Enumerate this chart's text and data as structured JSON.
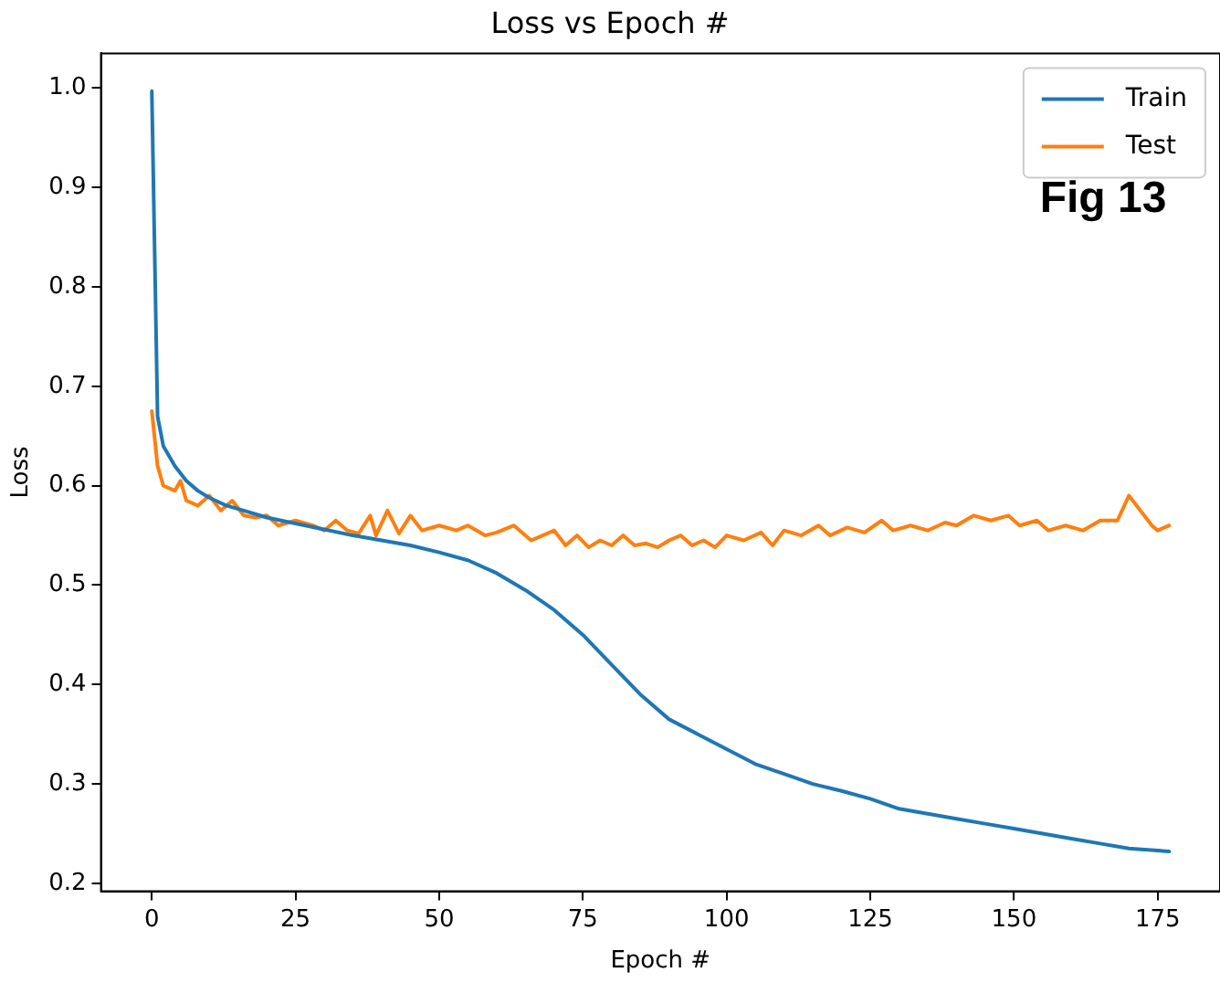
{
  "chart_data": {
    "type": "line",
    "title": "Loss vs Epoch #",
    "xlabel": "Epoch #",
    "ylabel": "Loss",
    "annotations": [
      "Fig 13"
    ],
    "legend": "top right",
    "grid": false,
    "xlim": [
      -8.85,
      185.85
    ],
    "xticks": [
      0,
      25,
      50,
      75,
      100,
      125,
      150,
      175
    ],
    "ylim": [
      0.192,
      1.035
    ],
    "yticks": [
      0.2,
      0.3,
      0.4,
      0.5,
      0.6,
      0.7,
      0.8,
      0.9,
      {
        "value": 1,
        "label": "1.0"
      }
    ],
    "series": [
      {
        "name": "Train",
        "color": "#1f77b4",
        "x": [
          0,
          1,
          2,
          4,
          6,
          8,
          10,
          13,
          16,
          20,
          25,
          30,
          35,
          40,
          45,
          50,
          55,
          60,
          65,
          70,
          75,
          80,
          85,
          90,
          95,
          100,
          105,
          110,
          115,
          120,
          125,
          130,
          135,
          140,
          145,
          150,
          155,
          160,
          165,
          170,
          175,
          177
        ],
        "values": [
          0.997,
          0.67,
          0.64,
          0.62,
          0.605,
          0.595,
          0.588,
          0.58,
          0.575,
          0.568,
          0.562,
          0.556,
          0.55,
          0.545,
          0.54,
          0.533,
          0.525,
          0.512,
          0.495,
          0.475,
          0.45,
          0.42,
          0.39,
          0.365,
          0.35,
          0.335,
          0.32,
          0.31,
          0.3,
          0.293,
          0.285,
          0.275,
          0.27,
          0.265,
          0.26,
          0.255,
          0.25,
          0.245,
          0.24,
          0.235,
          0.233,
          0.232
        ]
      },
      {
        "name": "Test",
        "color": "#ff7f0e",
        "x": [
          0,
          1,
          2,
          4,
          5,
          6,
          8,
          10,
          12,
          14,
          16,
          18,
          20,
          22,
          25,
          28,
          30,
          32,
          34,
          36,
          38,
          39,
          41,
          43,
          45,
          47,
          50,
          53,
          55,
          58,
          60,
          63,
          66,
          68,
          70,
          72,
          74,
          76,
          78,
          80,
          82,
          84,
          86,
          88,
          90,
          92,
          94,
          96,
          98,
          100,
          103,
          106,
          108,
          110,
          113,
          116,
          118,
          121,
          124,
          127,
          129,
          132,
          135,
          138,
          140,
          143,
          146,
          149,
          151,
          154,
          156,
          159,
          162,
          165,
          168,
          170,
          172,
          174,
          175,
          177
        ],
        "values": [
          0.675,
          0.62,
          0.6,
          0.595,
          0.605,
          0.585,
          0.58,
          0.59,
          0.575,
          0.585,
          0.57,
          0.568,
          0.57,
          0.56,
          0.565,
          0.56,
          0.555,
          0.565,
          0.555,
          0.552,
          0.57,
          0.55,
          0.575,
          0.552,
          0.57,
          0.555,
          0.56,
          0.555,
          0.56,
          0.55,
          0.553,
          0.56,
          0.545,
          0.55,
          0.555,
          0.54,
          0.55,
          0.538,
          0.545,
          0.54,
          0.55,
          0.54,
          0.542,
          0.538,
          0.545,
          0.55,
          0.54,
          0.545,
          0.538,
          0.55,
          0.545,
          0.553,
          0.54,
          0.555,
          0.55,
          0.56,
          0.55,
          0.558,
          0.553,
          0.565,
          0.555,
          0.56,
          0.555,
          0.563,
          0.56,
          0.57,
          0.565,
          0.57,
          0.56,
          0.565,
          0.555,
          0.56,
          0.555,
          0.565,
          0.565,
          0.59,
          0.575,
          0.56,
          0.555,
          0.56
        ]
      }
    ]
  }
}
